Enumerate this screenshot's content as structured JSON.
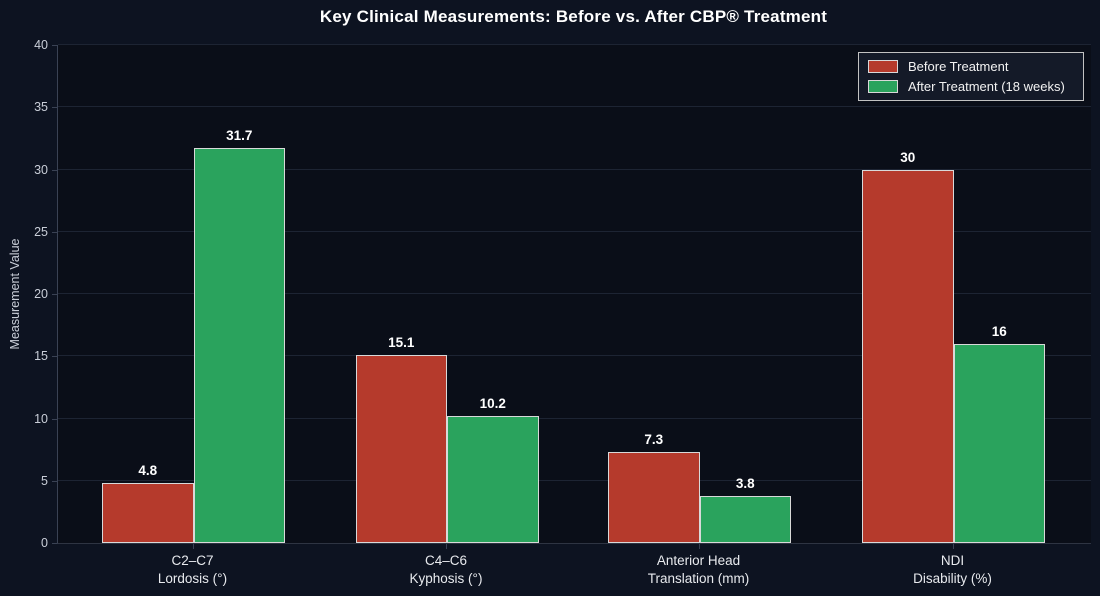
{
  "header": {
    "title": "Key Clinical Measurements: Before vs. After CBP® Treatment"
  },
  "chart_data": {
    "type": "bar",
    "title": "Key Clinical Measurements: Before vs. After CBP® Treatment",
    "xlabel": "",
    "ylabel": "Measurement Value",
    "ylim": [
      0,
      40
    ],
    "yticks": [
      0,
      5,
      10,
      15,
      20,
      25,
      30,
      35,
      40
    ],
    "grid": "horizontal",
    "legend_position": "upper-right",
    "categories": [
      [
        "C2–C7",
        "Lordosis (°)"
      ],
      [
        "C4–C6",
        "Kyphosis (°)"
      ],
      [
        "Anterior Head",
        "Translation (mm)"
      ],
      [
        "NDI",
        "Disability (%)"
      ]
    ],
    "series": [
      {
        "name": "Before Treatment",
        "color": "#b53a2c",
        "values": [
          4.8,
          15.1,
          7.3,
          30
        ]
      },
      {
        "name": "After Treatment (18 weeks)",
        "color": "#2aa35d",
        "values": [
          31.7,
          10.2,
          3.8,
          16
        ]
      }
    ],
    "colors": {
      "figure_background": "#0d1321",
      "plot_background": "#0a0e18",
      "gridline": "#1d2433",
      "axis_spine": "#3a4254",
      "tick_text": "#c9ced8",
      "value_text": "#ffffff",
      "bar_border": "#d9d9d9"
    }
  }
}
